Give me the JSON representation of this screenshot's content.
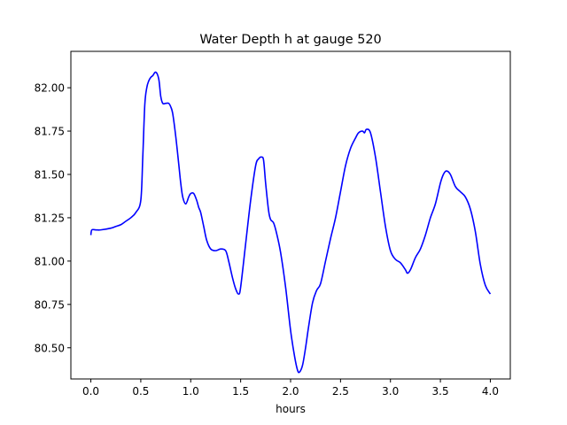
{
  "chart_data": {
    "type": "line",
    "title": "Water Depth h at gauge 520",
    "xlabel": "hours",
    "ylabel": "",
    "xlim": [
      -0.2,
      4.2
    ],
    "ylim": [
      80.32,
      82.21
    ],
    "xticks": [
      0.0,
      0.5,
      1.0,
      1.5,
      2.0,
      2.5,
      3.0,
      3.5,
      4.0
    ],
    "xtick_labels": [
      "0.0",
      "0.5",
      "1.0",
      "1.5",
      "2.0",
      "2.5",
      "3.0",
      "3.5",
      "4.0"
    ],
    "yticks": [
      80.5,
      80.75,
      81.0,
      81.25,
      81.5,
      81.75,
      82.0
    ],
    "ytick_labels": [
      "80.50",
      "80.75",
      "81.00",
      "81.25",
      "81.50",
      "81.75",
      "82.00"
    ],
    "grid": false,
    "series": [
      {
        "color": "#0000ff",
        "x": [
          0.0,
          0.01,
          0.05,
          0.1,
          0.2,
          0.25,
          0.3,
          0.35,
          0.4,
          0.45,
          0.5,
          0.52,
          0.54,
          0.56,
          0.58,
          0.6,
          0.62,
          0.65,
          0.68,
          0.7,
          0.72,
          0.75,
          0.78,
          0.8,
          0.82,
          0.85,
          0.88,
          0.9,
          0.92,
          0.95,
          0.98,
          1.0,
          1.03,
          1.06,
          1.08,
          1.1,
          1.13,
          1.16,
          1.2,
          1.25,
          1.3,
          1.35,
          1.38,
          1.42,
          1.45,
          1.48,
          1.5,
          1.55,
          1.6,
          1.65,
          1.68,
          1.71,
          1.73,
          1.75,
          1.78,
          1.8,
          1.83,
          1.86,
          1.9,
          1.95,
          2.0,
          2.04,
          2.07,
          2.09,
          2.12,
          2.15,
          2.18,
          2.22,
          2.26,
          2.3,
          2.35,
          2.4,
          2.45,
          2.5,
          2.55,
          2.6,
          2.65,
          2.68,
          2.72,
          2.74,
          2.76,
          2.8,
          2.85,
          2.9,
          2.95,
          3.0,
          3.05,
          3.1,
          3.15,
          3.17,
          3.2,
          3.25,
          3.3,
          3.35,
          3.4,
          3.45,
          3.5,
          3.53,
          3.56,
          3.6,
          3.65,
          3.7,
          3.75,
          3.8,
          3.85,
          3.9,
          3.95,
          4.0
        ],
        "y": [
          81.15,
          81.18,
          81.18,
          81.18,
          81.19,
          81.2,
          81.21,
          81.23,
          81.25,
          81.28,
          81.35,
          81.6,
          81.9,
          82.0,
          82.04,
          82.06,
          82.07,
          82.09,
          82.05,
          81.95,
          81.91,
          81.91,
          81.91,
          81.89,
          81.85,
          81.72,
          81.56,
          81.45,
          81.37,
          81.33,
          81.37,
          81.39,
          81.39,
          81.35,
          81.31,
          81.28,
          81.2,
          81.12,
          81.07,
          81.06,
          81.07,
          81.06,
          81.0,
          80.9,
          80.84,
          80.81,
          80.85,
          81.1,
          81.35,
          81.55,
          81.59,
          81.6,
          81.58,
          81.45,
          81.29,
          81.24,
          81.22,
          81.16,
          81.05,
          80.85,
          80.6,
          80.45,
          80.37,
          80.36,
          80.4,
          80.5,
          80.62,
          80.76,
          80.83,
          80.87,
          81.0,
          81.13,
          81.25,
          81.4,
          81.55,
          81.65,
          81.71,
          81.74,
          81.75,
          81.74,
          81.76,
          81.74,
          81.6,
          81.4,
          81.2,
          81.06,
          81.01,
          80.99,
          80.95,
          80.93,
          80.95,
          81.02,
          81.07,
          81.15,
          81.25,
          81.33,
          81.45,
          81.5,
          81.52,
          81.5,
          81.43,
          81.4,
          81.37,
          81.3,
          81.17,
          80.98,
          80.86,
          80.81
        ]
      }
    ]
  }
}
